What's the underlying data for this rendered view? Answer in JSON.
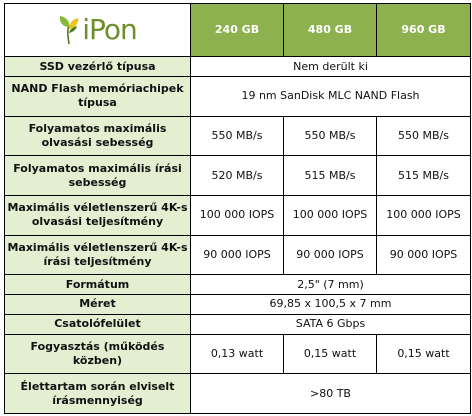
{
  "logo": {
    "text": "iPon",
    "colors": {
      "leaf_green": "#8bb73a",
      "leaf_dark": "#4f7a1c",
      "leaf_yellow": "#f0c419"
    }
  },
  "colors": {
    "header_green": "#8db14e",
    "label_green": "#e4efd1"
  },
  "capacities": [
    "240 GB",
    "480 GB",
    "960 GB"
  ],
  "rows": [
    {
      "label": "SSD vezérlő típusa",
      "span": true,
      "value": "Nem derült ki"
    },
    {
      "label": "NAND Flash memóriachipek típusa",
      "span": true,
      "value": "19 nm SanDisk MLC NAND Flash"
    },
    {
      "label": "Folyamatos maximális olvasási sebesség",
      "span": false,
      "values": [
        "550 MB/s",
        "550 MB/s",
        "550 MB/s"
      ]
    },
    {
      "label": "Folyamatos maximális írási sebesség",
      "span": false,
      "values": [
        "520 MB/s",
        "515 MB/s",
        "515 MB/s"
      ]
    },
    {
      "label": "Maximális véletlenszerű 4K-s olvasási teljesítmény",
      "span": false,
      "values": [
        "100 000 IOPS",
        "100 000 IOPS",
        "100 000 IOPS"
      ]
    },
    {
      "label": "Maximális véletlenszerű 4K-s írási teljesítmény",
      "span": false,
      "values": [
        "90 000 IOPS",
        "90 000 IOPS",
        "90 000 IOPS"
      ]
    },
    {
      "label": "Formátum",
      "span": true,
      "value": "2,5\" (7 mm)"
    },
    {
      "label": "Méret",
      "span": true,
      "value": "69,85 x 100,5 x 7 mm"
    },
    {
      "label": "Csatolófelület",
      "span": true,
      "value": "SATA 6 Gbps"
    },
    {
      "label": "Fogyasztás (működés közben)",
      "span": false,
      "values": [
        "0,13 watt",
        "0,15 watt",
        "0,15 watt"
      ]
    },
    {
      "label": "Élettartam során elviselt írásmennyiség",
      "span": true,
      "value": ">80 TB"
    }
  ]
}
